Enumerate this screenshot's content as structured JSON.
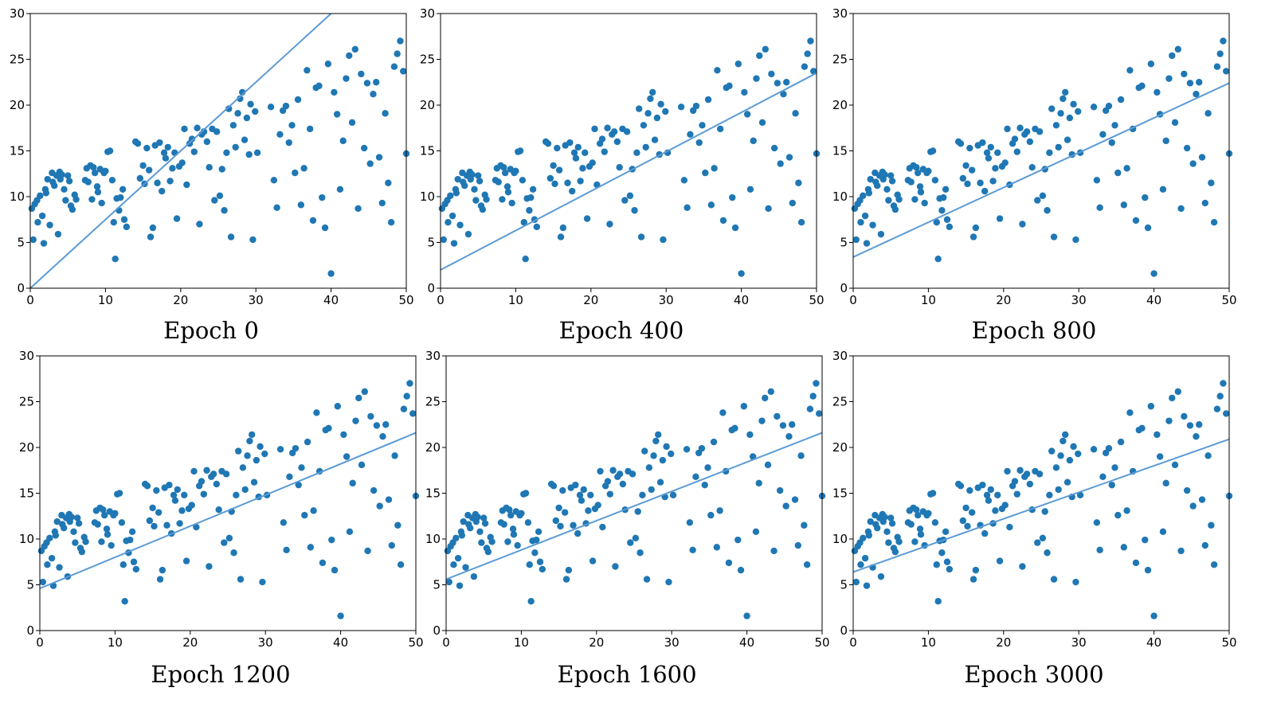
{
  "figure": {
    "point_color": "#1f77b4",
    "line_color": "#5b9bd5"
  },
  "chart_data": [
    {
      "type": "scatter",
      "title": "Epoch 0",
      "xlabel": "",
      "ylabel": "",
      "xlim": [
        0,
        50
      ],
      "ylim": [
        0,
        30
      ],
      "xticks": [
        0,
        10,
        20,
        30,
        40,
        50
      ],
      "yticks": [
        0,
        5,
        10,
        15,
        20,
        25,
        30
      ],
      "fit_line": {
        "slope": 0.75,
        "intercept": 0.0
      }
    },
    {
      "type": "scatter",
      "title": "Epoch 400",
      "xlabel": "",
      "ylabel": "",
      "xlim": [
        0,
        50
      ],
      "ylim": [
        0,
        30
      ],
      "xticks": [
        0,
        10,
        20,
        30,
        40,
        50
      ],
      "yticks": [
        0,
        5,
        10,
        15,
        20,
        25,
        30
      ],
      "fit_line": {
        "slope": 0.43,
        "intercept": 2.0
      }
    },
    {
      "type": "scatter",
      "title": "Epoch 800",
      "xlabel": "",
      "ylabel": "",
      "xlim": [
        0,
        50
      ],
      "ylim": [
        0,
        30
      ],
      "xticks": [
        0,
        10,
        20,
        30,
        40,
        50
      ],
      "yticks": [
        0,
        5,
        10,
        15,
        20,
        25,
        30
      ],
      "fit_line": {
        "slope": 0.38,
        "intercept": 3.4
      }
    },
    {
      "type": "scatter",
      "title": "Epoch 1200",
      "xlabel": "",
      "ylabel": "",
      "xlim": [
        0,
        50
      ],
      "ylim": [
        0,
        30
      ],
      "xticks": [
        0,
        10,
        20,
        30,
        40,
        50
      ],
      "yticks": [
        0,
        5,
        10,
        15,
        20,
        25,
        30
      ],
      "fit_line": {
        "slope": 0.34,
        "intercept": 4.6
      }
    },
    {
      "type": "scatter",
      "title": "Epoch 1600",
      "xlabel": "",
      "ylabel": "",
      "xlim": [
        0,
        50
      ],
      "ylim": [
        0,
        30
      ],
      "xticks": [
        0,
        10,
        20,
        30,
        40,
        50
      ],
      "yticks": [
        0,
        5,
        10,
        15,
        20,
        25,
        30
      ],
      "fit_line": {
        "slope": 0.32,
        "intercept": 5.6
      }
    },
    {
      "type": "scatter",
      "title": "Epoch 3000",
      "xlabel": "",
      "ylabel": "",
      "xlim": [
        0,
        50
      ],
      "ylim": [
        0,
        30
      ],
      "xticks": [
        0,
        10,
        20,
        30,
        40,
        50
      ],
      "yticks": [
        0,
        5,
        10,
        15,
        20,
        25,
        30
      ],
      "fit_line": {
        "slope": 0.29,
        "intercept": 6.4
      }
    }
  ],
  "scatter_points": {
    "x": [
      0.2,
      0.4,
      0.6,
      0.9,
      1.0,
      1.3,
      1.6,
      1.8,
      2.0,
      2.1,
      2.3,
      2.6,
      2.9,
      3.0,
      3.2,
      3.5,
      3.7,
      3.9,
      4.0,
      4.2,
      4.5,
      4.7,
      5.0,
      5.2,
      5.4,
      5.6,
      5.9,
      6.1,
      7.3,
      7.5,
      7.7,
      8.0,
      8.2,
      8.4,
      8.6,
      8.9,
      9.0,
      9.3,
      9.5,
      9.8,
      10.0,
      10.3,
      10.6,
      10.9,
      11.1,
      11.3,
      11.5,
      11.8,
      12.0,
      12.3,
      12.5,
      12.8,
      14.0,
      14.3,
      14.6,
      15.0,
      15.2,
      15.5,
      15.8,
      16.0,
      16.3,
      16.6,
      16.9,
      17.2,
      17.5,
      17.8,
      18.0,
      18.3,
      18.6,
      18.9,
      19.2,
      19.5,
      19.8,
      20.2,
      20.5,
      20.8,
      21.2,
      21.5,
      21.8,
      22.2,
      22.5,
      22.8,
      23.1,
      23.5,
      23.8,
      24.2,
      24.5,
      24.8,
      25.2,
      25.5,
      25.8,
      26.1,
      26.4,
      26.7,
      27.0,
      27.3,
      27.6,
      27.9,
      28.2,
      28.5,
      28.8,
      29.1,
      29.3,
      29.6,
      29.9,
      30.2,
      32.0,
      32.4,
      32.8,
      33.2,
      33.6,
      34.0,
      34.4,
      34.8,
      35.2,
      35.6,
      36.0,
      36.4,
      36.8,
      37.2,
      37.6,
      38.0,
      38.4,
      38.8,
      39.2,
      39.6,
      40.0,
      40.4,
      40.8,
      41.2,
      41.6,
      42.0,
      42.4,
      42.8,
      43.2,
      43.6,
      44.0,
      44.4,
      44.8,
      45.2,
      45.6,
      46.0,
      46.4,
      46.8,
      47.2,
      47.6,
      48.0,
      48.4,
      48.8,
      49.2,
      49.6,
      50.0
    ],
    "y": [
      8.7,
      5.3,
      9.2,
      9.6,
      7.2,
      10.1,
      7.9,
      4.9,
      10.8,
      10.4,
      11.9,
      6.9,
      12.6,
      11.6,
      11.2,
      12.3,
      5.9,
      12.7,
      11.9,
      12.4,
      10.8,
      9.6,
      12.3,
      11.7,
      9.0,
      8.6,
      10.2,
      9.7,
      11.8,
      13.1,
      11.6,
      13.4,
      9.7,
      13.2,
      12.6,
      11.1,
      10.5,
      13.0,
      9.3,
      12.6,
      12.8,
      14.9,
      15.0,
      11.8,
      7.2,
      3.2,
      9.8,
      8.5,
      9.9,
      10.8,
      7.5,
      6.7,
      16.0,
      15.8,
      12.0,
      13.4,
      11.4,
      15.3,
      12.9,
      5.6,
      6.6,
      15.6,
      11.5,
      15.9,
      10.6,
      14.8,
      14.2,
      15.4,
      11.7,
      13.1,
      14.8,
      7.6,
      13.3,
      13.7,
      17.4,
      11.3,
      15.8,
      16.3,
      14.9,
      17.5,
      7.0,
      16.8,
      17.1,
      16.0,
      13.2,
      17.4,
      9.6,
      17.1,
      10.1,
      13.0,
      8.5,
      14.8,
      19.6,
      5.6,
      17.8,
      15.4,
      19.1,
      20.7,
      21.4,
      16.2,
      18.6,
      14.6,
      20.1,
      5.3,
      19.3,
      14.8,
      19.8,
      11.8,
      8.8,
      16.8,
      19.4,
      19.9,
      15.9,
      17.8,
      12.6,
      20.6,
      9.1,
      13.1,
      23.8,
      17.4,
      7.4,
      21.9,
      22.1,
      9.9,
      6.6,
      24.5,
      1.6,
      21.4,
      19.0,
      10.8,
      16.1,
      22.9,
      25.4,
      18.1,
      26.1,
      8.7,
      23.4,
      15.3,
      22.4,
      13.6,
      21.2,
      22.5,
      14.3,
      9.3,
      19.1,
      11.5,
      7.2,
      24.2,
      25.6,
      27.0,
      23.7,
      14.7
    ]
  },
  "panels": {
    "p0": {
      "caption": "Epoch 0"
    },
    "p1": {
      "caption": "Epoch 400"
    },
    "p2": {
      "caption": "Epoch 800"
    },
    "p3": {
      "caption": "Epoch 1200"
    },
    "p4": {
      "caption": "Epoch 1600"
    },
    "p5": {
      "caption": "Epoch 3000"
    }
  }
}
